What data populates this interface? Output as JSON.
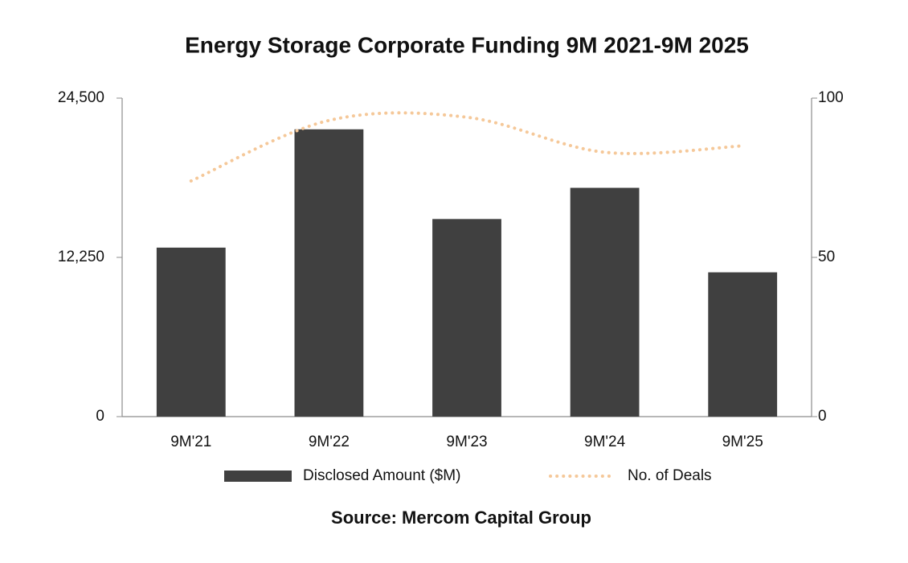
{
  "chart_data": {
    "type": "bar_line",
    "title": "Energy Storage Corporate Funding 9M 2021-9M 2025",
    "source": "Source: Mercom Capital Group",
    "categories": [
      "9M'21",
      "9M'22",
      "9M'23",
      "9M'24",
      "9M'25"
    ],
    "series": [
      {
        "name": "Disclosed Amount ($M)",
        "type": "bar",
        "color": "#404040",
        "axis": "y",
        "values": [
          13000,
          22100,
          15200,
          17600,
          11100
        ]
      },
      {
        "name": "No. of Deals",
        "type": "line",
        "color": "#f5c899",
        "axis": "y2",
        "dotted": true,
        "values": [
          74,
          93,
          94,
          83,
          85
        ]
      }
    ],
    "ylim": [
      0,
      24500
    ],
    "yticks": [
      0,
      {
        "value": 12250,
        "label": "12,250"
      },
      {
        "value": 24500,
        "label": "24,500"
      }
    ],
    "y2lim": [
      0,
      100
    ],
    "y2ticks": [
      0,
      50,
      100
    ],
    "grid": false,
    "legend": "bottom"
  }
}
